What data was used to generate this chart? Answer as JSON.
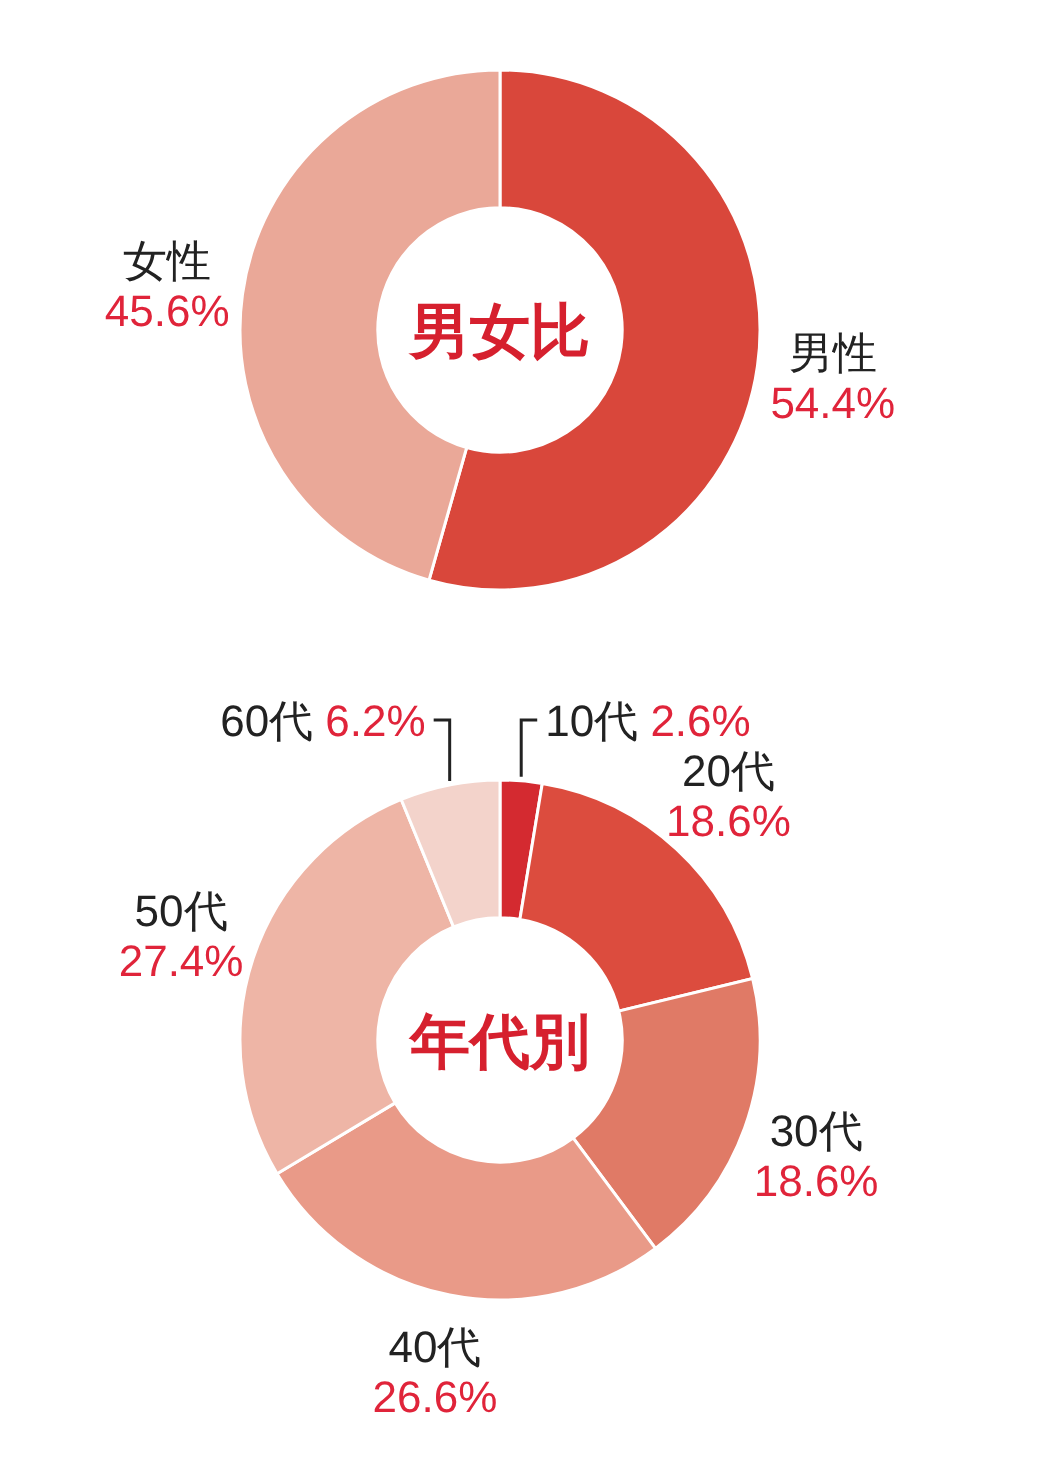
{
  "chart_data": [
    {
      "type": "donut",
      "title": "男女比",
      "categories": [
        "男性",
        "女性"
      ],
      "values": [
        54.4,
        45.6
      ],
      "colors": [
        "#d9473b",
        "#eaa898"
      ],
      "value_labels": [
        "54.4%",
        "45.6%"
      ]
    },
    {
      "type": "donut",
      "title": "年代別",
      "categories": [
        "10代",
        "20代",
        "30代",
        "40代",
        "50代",
        "60代"
      ],
      "values": [
        2.6,
        18.6,
        18.6,
        26.6,
        27.4,
        6.2
      ],
      "colors": [
        "#d42a30",
        "#dc4c3e",
        "#e07a66",
        "#e99a88",
        "#eeb5a6",
        "#f3d3cb"
      ],
      "value_labels": [
        "2.6%",
        "18.6%",
        "18.6%",
        "26.6%",
        "27.4%",
        "6.2%"
      ]
    }
  ]
}
